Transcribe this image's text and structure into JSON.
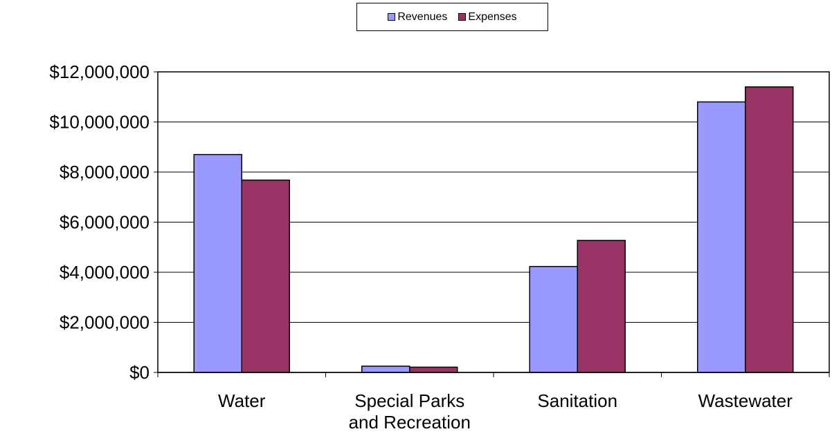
{
  "chart_data": {
    "type": "bar",
    "categories": [
      [
        "Water"
      ],
      [
        "Special Parks",
        "and Recreation"
      ],
      [
        "Sanitation"
      ],
      [
        "Wastewater"
      ]
    ],
    "series": [
      {
        "name": "Revenues",
        "color": "#9999ff",
        "values": [
          8700000,
          250000,
          4230000,
          10800000
        ]
      },
      {
        "name": "Expenses",
        "color": "#993366",
        "values": [
          7680000,
          210000,
          5270000,
          11400000
        ]
      }
    ],
    "yticks": [
      "$0",
      "$2,000,000",
      "$4,000,000",
      "$6,000,000",
      "$8,000,000",
      "$10,000,000",
      "$12,000,000"
    ],
    "ylim": [
      0,
      12000000
    ],
    "grid": true,
    "legend_position": "top-center",
    "title": "",
    "xlabel": "",
    "ylabel": ""
  }
}
